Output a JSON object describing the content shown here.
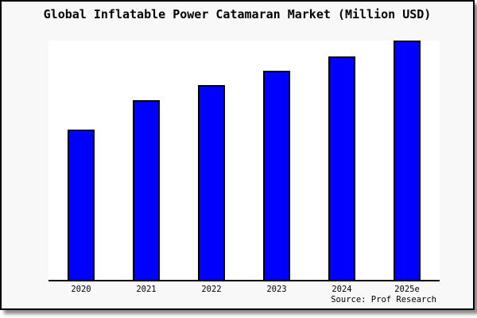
{
  "title": "Global Inflatable Power Catamaran Market (Million USD)",
  "source": "Source: Prof Research",
  "colors": {
    "bar_fill": "#0000FF",
    "bar_edge": "#000000",
    "box_background": "#f8f8f8",
    "plot_background": "#ffffff",
    "axis": "#000000",
    "border": "#000000"
  },
  "chart_data": {
    "type": "bar",
    "title": "Global Inflatable Power Catamaran Market (Million USD)",
    "categories": [
      "2020",
      "2021",
      "2022",
      "2023",
      "2024",
      "2025e"
    ],
    "values_relative": [
      62.8,
      75.1,
      81.4,
      87.5,
      93.5,
      100
    ],
    "value_axis_note": "y-axis unlabeled, no ticks or gridlines; values are % of tallest bar (2025e = 100)",
    "xlabel": "",
    "ylabel": "",
    "ylim_relative": [
      0,
      100
    ],
    "grid": "off",
    "legend": "none",
    "bar_color": "#0000FF",
    "source_note": "Source: Prof Research"
  }
}
